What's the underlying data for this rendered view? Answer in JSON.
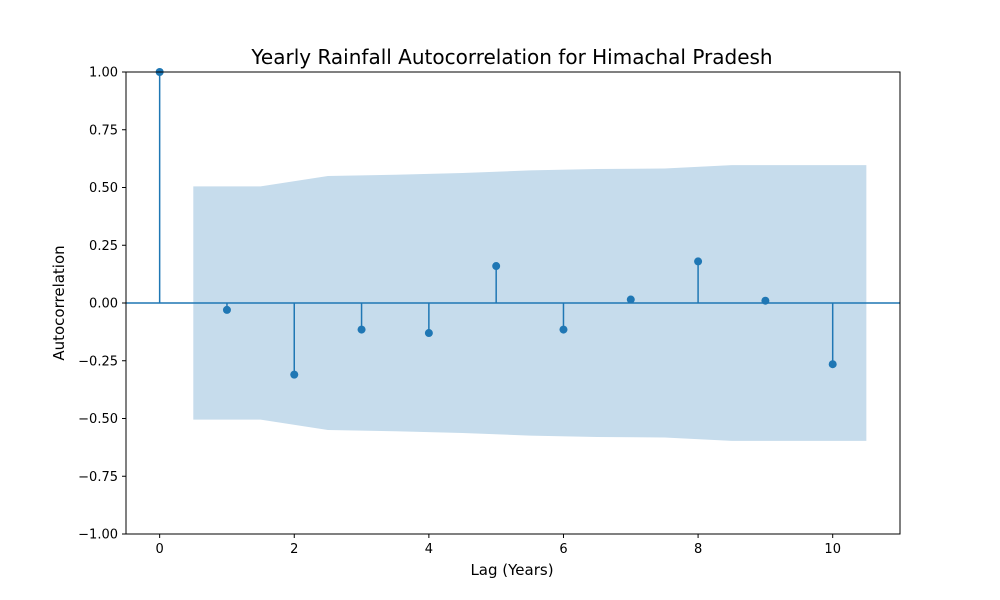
{
  "chart_data": {
    "type": "scatter",
    "subtype": "stem",
    "title": "Yearly Rainfall Autocorrelation for Himachal Pradesh",
    "xlabel": "Lag (Years)",
    "ylabel": "Autocorrelation",
    "xlim": [
      -0.5,
      11
    ],
    "ylim": [
      -1.0,
      1.0
    ],
    "x_ticks": [
      0,
      2,
      4,
      6,
      8,
      10
    ],
    "x_tick_labels": [
      "0",
      "2",
      "4",
      "6",
      "8",
      "10"
    ],
    "y_ticks": [
      -1.0,
      -0.75,
      -0.5,
      -0.25,
      0.0,
      0.25,
      0.5,
      0.75,
      1.0
    ],
    "y_tick_labels": [
      "−1.00",
      "−0.75",
      "−0.50",
      "−0.25",
      "0.00",
      "0.25",
      "0.50",
      "0.75",
      "1.00"
    ],
    "grid": false,
    "colors": {
      "stem": "#1f77b4",
      "confidence_band": "#c6dcec"
    },
    "series": [
      {
        "lags": [
          0,
          1,
          2,
          3,
          4,
          5,
          6,
          7,
          8,
          9,
          10
        ],
        "values": [
          1.0,
          -0.03,
          -0.31,
          -0.115,
          -0.13,
          0.16,
          -0.115,
          0.015,
          0.18,
          0.01,
          -0.265
        ]
      }
    ],
    "confidence_band": {
      "x": [
        0.5,
        1.5,
        2.5,
        3.5,
        4.5,
        5.5,
        6.5,
        7.5,
        8.5,
        9.5,
        10.5
      ],
      "upper": [
        0.505,
        0.505,
        0.55,
        0.555,
        0.563,
        0.574,
        0.58,
        0.582,
        0.597,
        0.597,
        0.597
      ],
      "lower": [
        -0.505,
        -0.505,
        -0.55,
        -0.555,
        -0.563,
        -0.574,
        -0.58,
        -0.582,
        -0.597,
        -0.597,
        -0.597
      ]
    }
  }
}
